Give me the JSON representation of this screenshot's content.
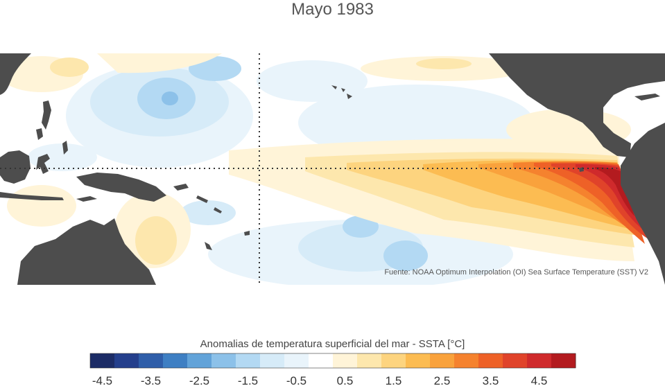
{
  "title": "Mayo 1983",
  "source": "Fuente: NOAA Optimum Interpolation (OI) Sea Surface Temperature (SST) V2",
  "colorbar": {
    "title": "Anomalias de temperatura superficial del mar - SSTA  [°C]",
    "tick_labels": [
      "-4.5",
      "-3.5",
      "-2.5",
      "-1.5",
      "-0.5",
      "0.5",
      "1.5",
      "2.5",
      "3.5",
      "4.5"
    ],
    "colors": [
      "#1c2c66",
      "#243f8c",
      "#2f5ea9",
      "#3e7fc3",
      "#62a3d9",
      "#8cc1e9",
      "#b3d9f3",
      "#d6ebf8",
      "#e9f4fb",
      "#ffffff",
      "#fff4d8",
      "#fde7ad",
      "#fdd47f",
      "#fcbc52",
      "#f9a23c",
      "#f5822e",
      "#ee6127",
      "#e0432a",
      "#cf2a2c",
      "#b31b1f"
    ]
  },
  "colors": {
    "land": "#4d4d4d",
    "ocean_neutral": "#ffffff"
  }
}
